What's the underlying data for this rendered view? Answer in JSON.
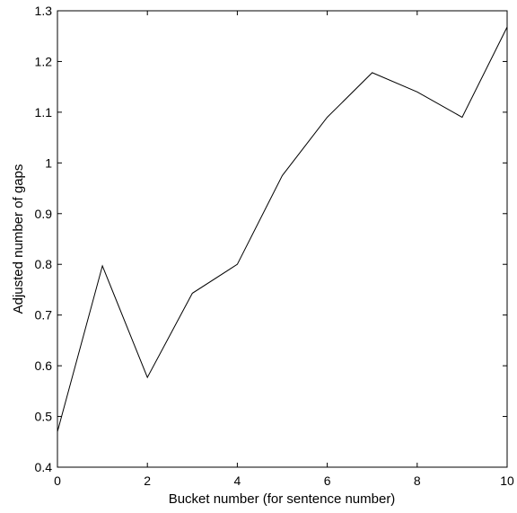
{
  "chart_data": {
    "type": "line",
    "title": "",
    "xlabel": "Bucket number (for sentence number)",
    "ylabel": "Adjusted number of gaps",
    "xlim": [
      0,
      10
    ],
    "ylim": [
      0.4,
      1.3
    ],
    "xticks": [
      0,
      2,
      4,
      6,
      8,
      10
    ],
    "yticks": [
      0.4,
      0.5,
      0.6,
      0.7,
      0.8,
      0.9,
      1.0,
      1.1,
      1.2,
      1.3
    ],
    "xtick_labels": [
      "0",
      "2",
      "4",
      "6",
      "8",
      "10"
    ],
    "ytick_labels": [
      "0.4",
      "0.5",
      "0.6",
      "0.7",
      "0.8",
      "0.9",
      "1",
      "1.1",
      "1.2",
      "1.3"
    ],
    "grid": false,
    "legend": "none",
    "line_color": "#000000",
    "series": [
      {
        "x": [
          0,
          1,
          2,
          3,
          4,
          5,
          6,
          7,
          8,
          9,
          10
        ],
        "y": [
          0.47,
          0.797,
          0.577,
          0.743,
          0.8,
          0.975,
          1.09,
          1.178,
          1.14,
          1.09,
          1.268
        ]
      }
    ]
  }
}
